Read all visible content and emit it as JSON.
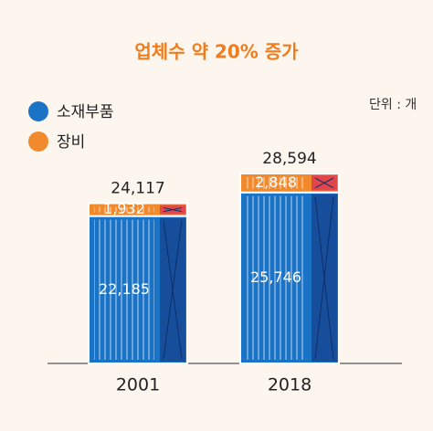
{
  "chart_data": {
    "type": "bar",
    "stacked": true,
    "title": "업체수 약 20% 증가",
    "unit": "단위 : 개",
    "categories": [
      "2001",
      "2018"
    ],
    "series": [
      {
        "name": "소재부품",
        "color": "#1b73c6",
        "values": [
          22185,
          25746
        ],
        "value_labels": [
          "22,185",
          "25,746"
        ]
      },
      {
        "name": "장비",
        "color": "#f08a2c",
        "values": [
          1932,
          2848
        ],
        "value_labels": [
          "1,932",
          "2,848"
        ]
      }
    ],
    "totals": [
      24117,
      28594
    ],
    "total_labels": [
      "24,117",
      "28,594"
    ]
  }
}
